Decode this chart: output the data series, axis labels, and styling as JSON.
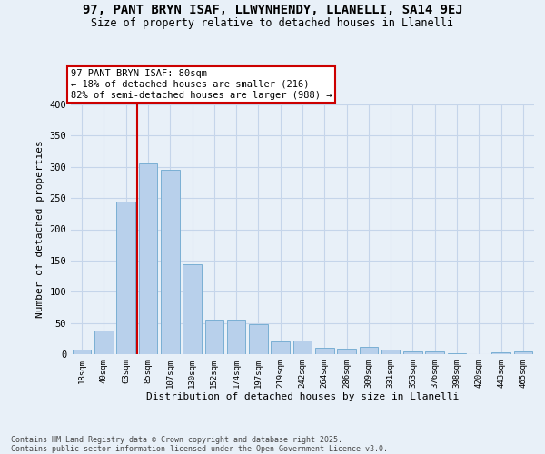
{
  "title": "97, PANT BRYN ISAF, LLWYNHENDY, LLANELLI, SA14 9EJ",
  "subtitle": "Size of property relative to detached houses in Llanelli",
  "xlabel": "Distribution of detached houses by size in Llanelli",
  "ylabel": "Number of detached properties",
  "footnote": "Contains HM Land Registry data © Crown copyright and database right 2025.\nContains public sector information licensed under the Open Government Licence v3.0.",
  "bar_color": "#b8d0eb",
  "bar_edge_color": "#7aafd4",
  "bg_color": "#e8f0f8",
  "grid_color": "#c5d5ea",
  "vline_color": "#cc0000",
  "vline_pos": 2.5,
  "annotation_text": "97 PANT BRYN ISAF: 80sqm\n← 18% of detached houses are smaller (216)\n82% of semi-detached houses are larger (988) →",
  "categories": [
    "18sqm",
    "40sqm",
    "63sqm",
    "85sqm",
    "107sqm",
    "130sqm",
    "152sqm",
    "174sqm",
    "197sqm",
    "219sqm",
    "242sqm",
    "264sqm",
    "286sqm",
    "309sqm",
    "331sqm",
    "353sqm",
    "376sqm",
    "398sqm",
    "420sqm",
    "443sqm",
    "465sqm"
  ],
  "values": [
    8,
    38,
    244,
    306,
    295,
    144,
    56,
    56,
    48,
    21,
    22,
    10,
    9,
    12,
    7,
    5,
    4,
    2,
    0,
    3,
    4
  ],
  "ylim": [
    0,
    400
  ],
  "yticks": [
    0,
    50,
    100,
    150,
    200,
    250,
    300,
    350,
    400
  ]
}
